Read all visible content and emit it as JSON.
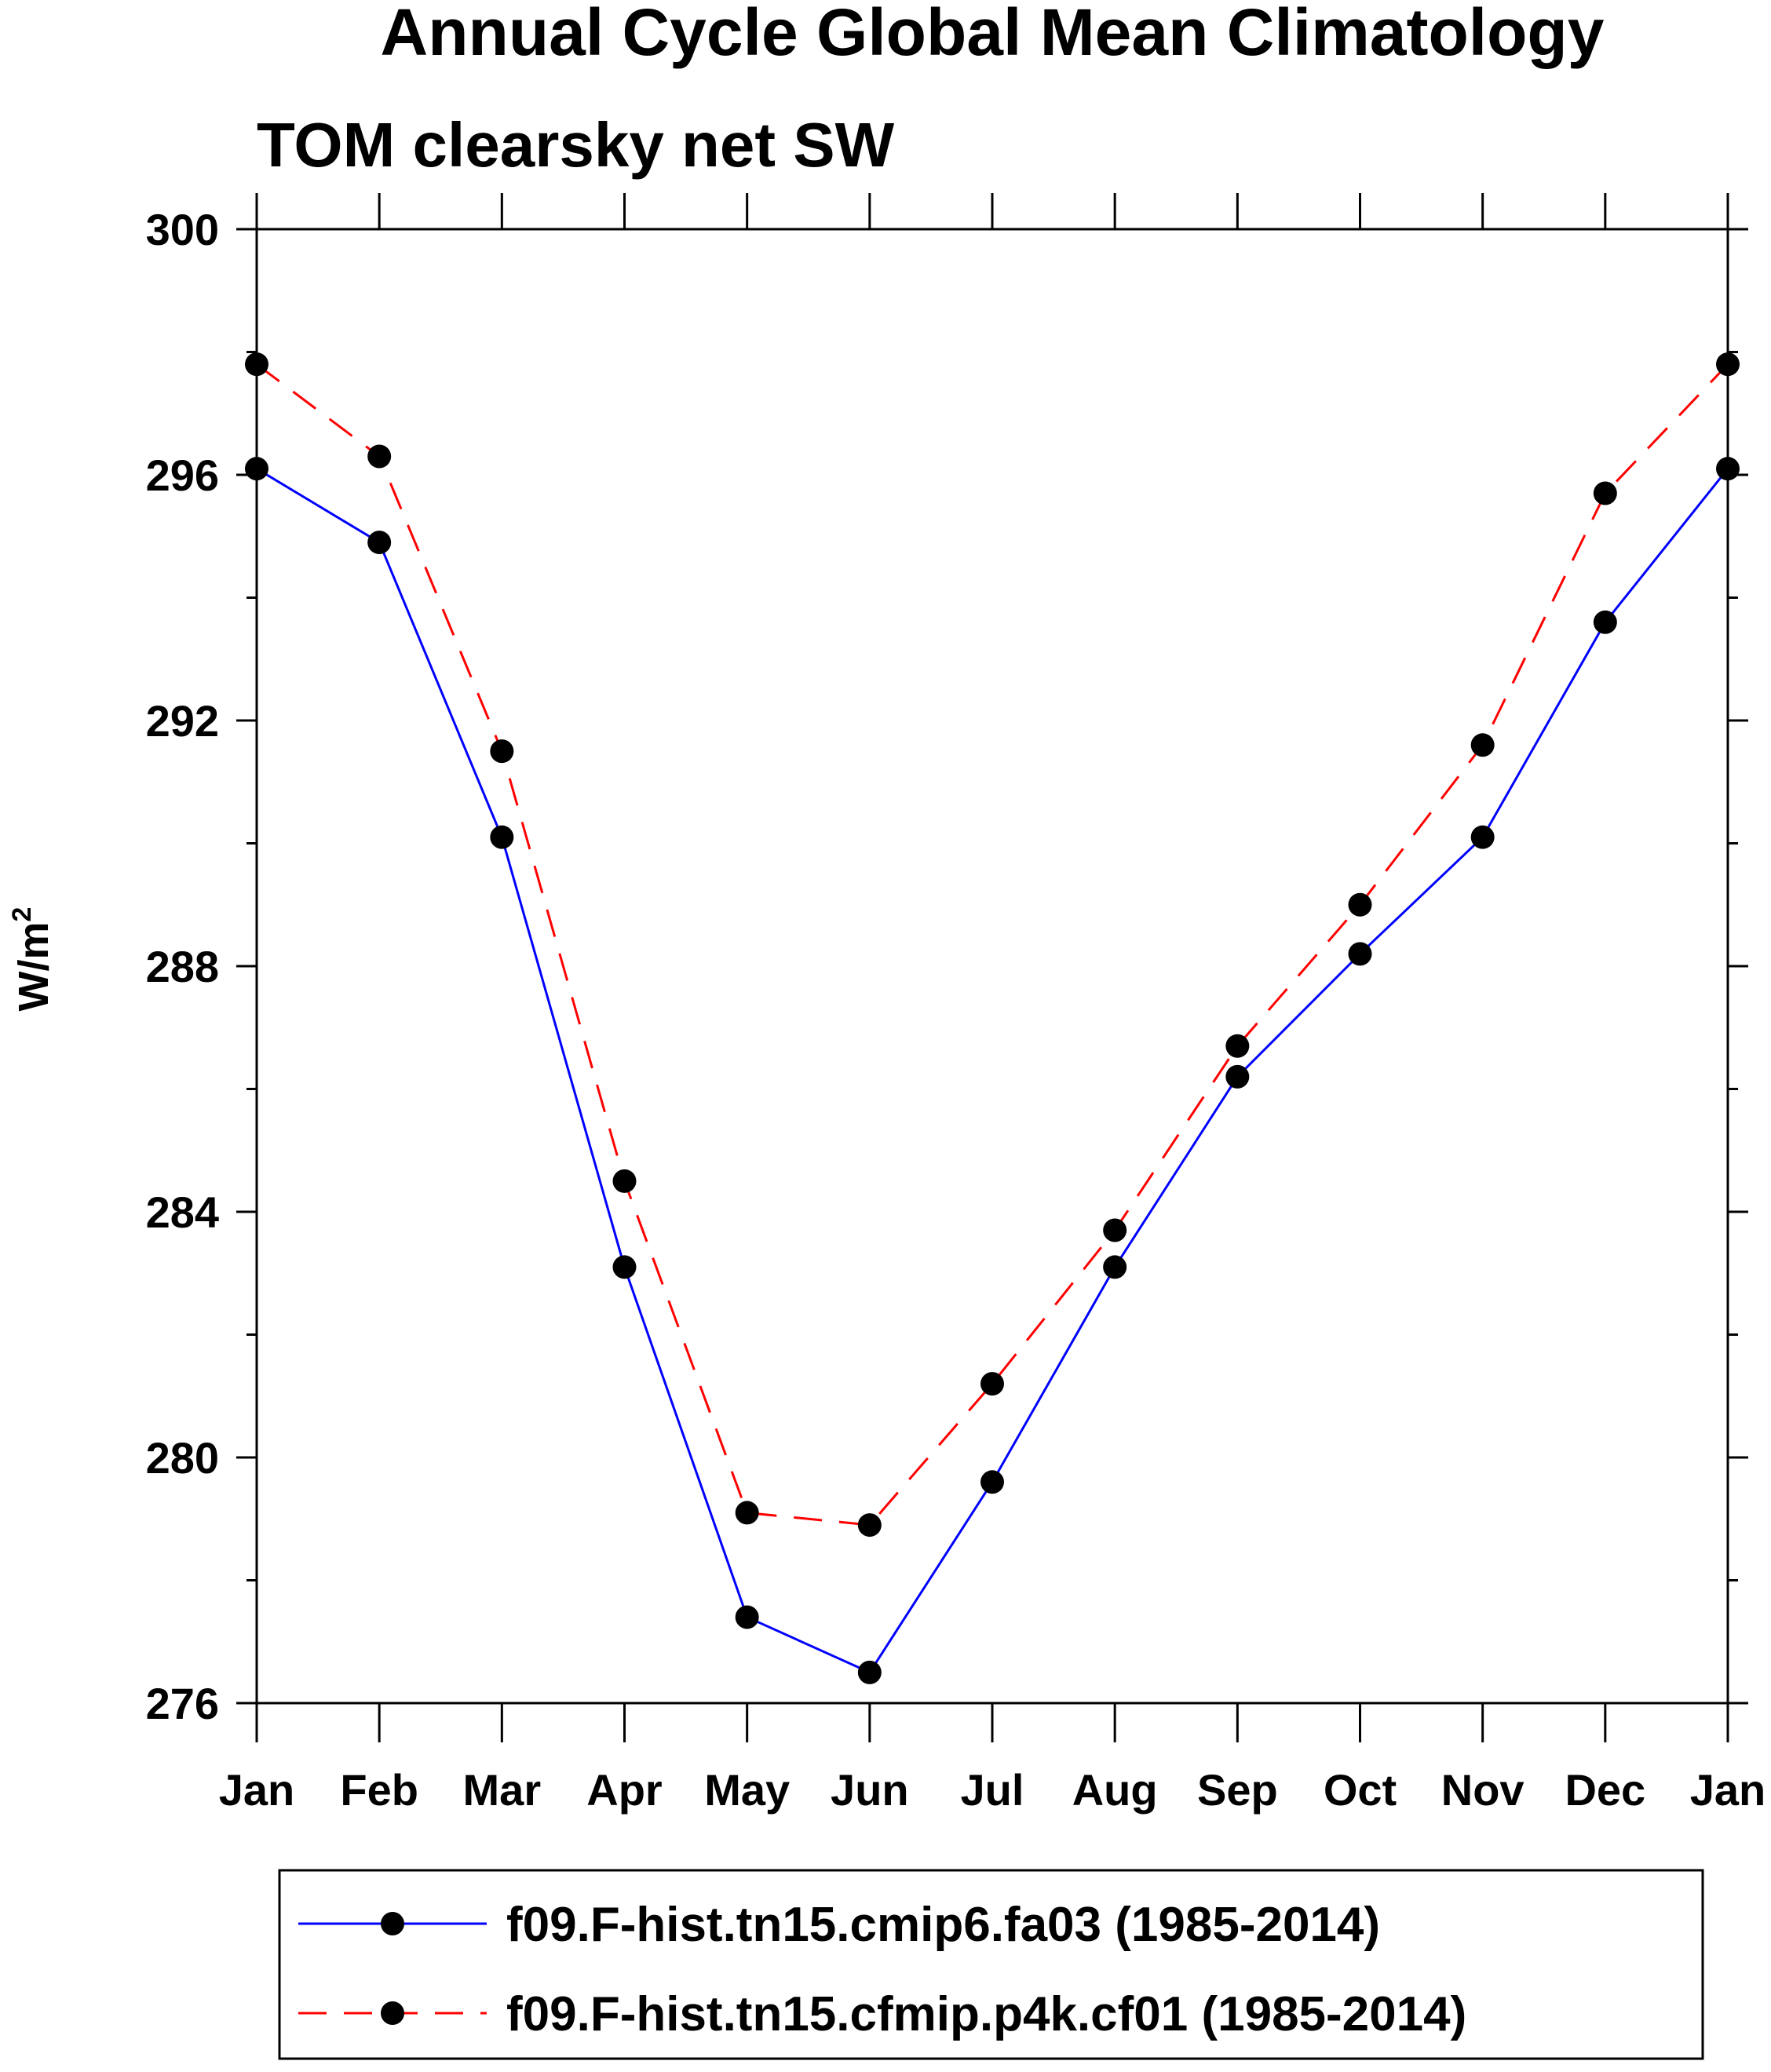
{
  "chart_data": {
    "type": "line",
    "title": "Annual Cycle Global Mean Climatology",
    "subtitle": "TOM clearsky net SW",
    "ylabel_base": "W/m",
    "ylabel_sup": "2",
    "categories": [
      "Jan",
      "Feb",
      "Mar",
      "Apr",
      "May",
      "Jun",
      "Jul",
      "Aug",
      "Sep",
      "Oct",
      "Nov",
      "Dec",
      "Jan"
    ],
    "ylim": [
      276,
      300
    ],
    "yticks": [
      276,
      280,
      284,
      288,
      292,
      296,
      300
    ],
    "yticks_labels": [
      "276",
      "280",
      "284",
      "288",
      "292",
      "296",
      "300"
    ],
    "series": [
      {
        "name": "f09.F-hist.tn15.cmip6.fa03 (1985-2014)",
        "color": "#0000ff",
        "dash": "solid",
        "values": [
          296.1,
          294.9,
          290.1,
          283.1,
          277.4,
          276.5,
          279.6,
          283.1,
          286.2,
          288.2,
          290.1,
          293.6,
          296.1
        ]
      },
      {
        "name": "f09.F-hist.tn15.cfmip.p4k.cf01 (1985-2014)",
        "color": "#ff0000",
        "dash": "dashed",
        "values": [
          297.8,
          296.3,
          291.5,
          284.5,
          279.1,
          278.9,
          281.2,
          283.7,
          286.7,
          289.0,
          291.6,
          295.7,
          297.8
        ]
      }
    ],
    "legend": {
      "position": "bottom"
    },
    "grid": false
  }
}
